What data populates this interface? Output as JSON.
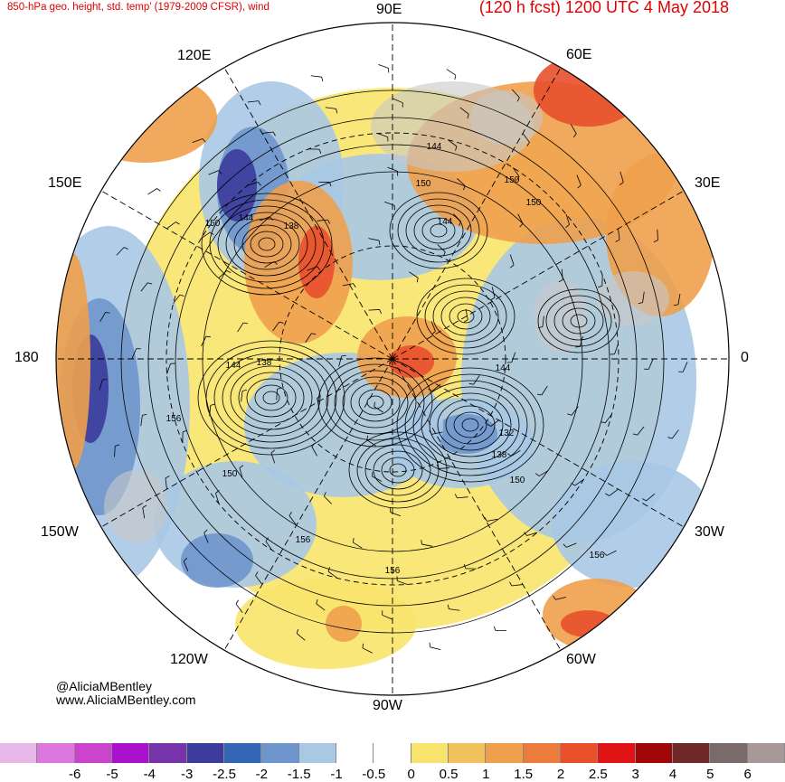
{
  "header": {
    "left_title": "850-hPa geo. height, std. temp' (1979-2009 CFSR), wind",
    "right_title": "(120 h fcst) 1200 UTC 4 May 2018"
  },
  "longitude_labels": {
    "n90e": "90E",
    "n60e": "60E",
    "n120e": "120E",
    "n30e": "30E",
    "n150e": "150E",
    "n180": "180",
    "n0": "0",
    "n150w": "150W",
    "n30w": "30W",
    "n120w": "120W",
    "n60w": "60W",
    "n90w": "90W"
  },
  "height_labels": [
    "144",
    "150",
    "150",
    "150",
    "144",
    "150",
    "144",
    "138",
    "144",
    "138",
    "156",
    "150",
    "132",
    "138",
    "150",
    "156",
    "156",
    "156",
    "144"
  ],
  "credits": {
    "handle": "@AliciaMBentley",
    "website": "www.AliciaMBentley.com"
  },
  "colorbar": {
    "colors": [
      "#e8b8e8",
      "#dd77dd",
      "#cc44cc",
      "#aa11cc",
      "#7733aa",
      "#3c3c9c",
      "#3366b4",
      "#6f96cc",
      "#a8c8e4",
      "#ffffff",
      "#ffffff",
      "#f8e46c",
      "#f2c35c",
      "#f0a04c",
      "#ec7c3c",
      "#e8502c",
      "#e01414",
      "#a00808",
      "#702828",
      "#7a6a6a",
      "#a89898"
    ],
    "tick_labels": [
      "-6",
      "-5",
      "-4",
      "-3",
      "-2.5",
      "-2",
      "-1.5",
      "-1",
      "-0.5",
      "0",
      "0.5",
      "1",
      "1.5",
      "2",
      "2.5",
      "3",
      "4",
      "5",
      "6"
    ]
  },
  "map_colors": {
    "warm_strong": "#e8502c",
    "warm": "#f0a04c",
    "warm_light": "#f8e46c",
    "cold": "#6f96cc",
    "cold_strong": "#3c3c9c",
    "cold_light": "#a8c8e4",
    "land_gray": "#c8c8c8"
  }
}
